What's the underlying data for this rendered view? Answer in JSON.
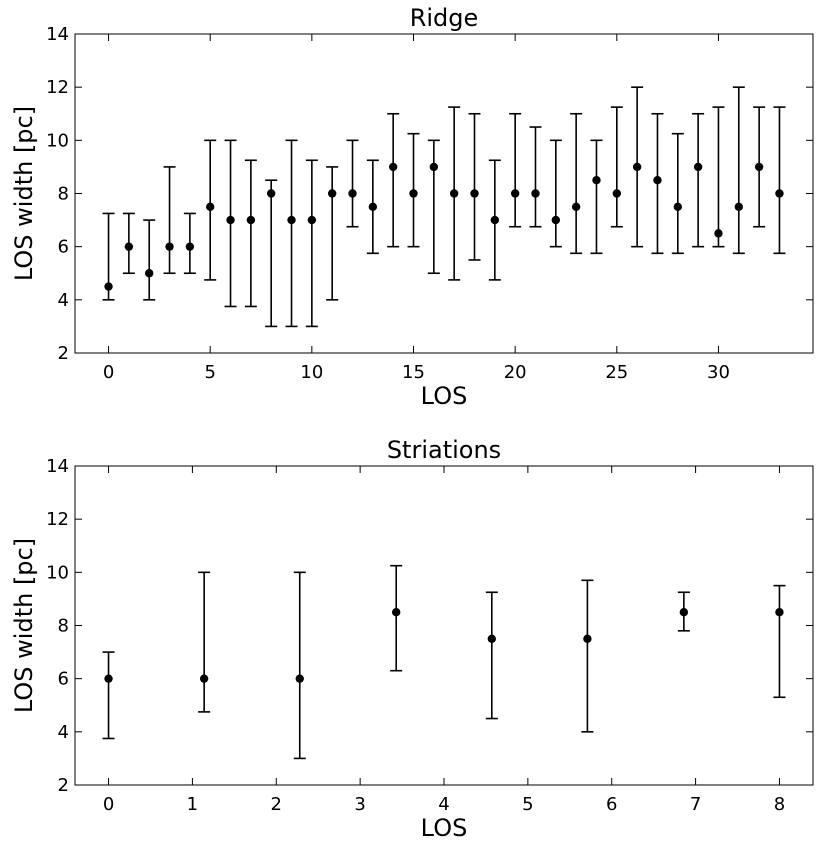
{
  "chart_data": [
    {
      "type": "scatter",
      "subtype": "errorbar",
      "title": "Ridge",
      "xlabel": "LOS",
      "ylabel": "LOS width [pc]",
      "xlim": [
        -1.65,
        34.65
      ],
      "ylim": [
        2,
        14
      ],
      "xticks": [
        0,
        5,
        10,
        15,
        20,
        25,
        30
      ],
      "yticks": [
        2,
        4,
        6,
        8,
        10,
        12,
        14
      ],
      "x": [
        0,
        1,
        2,
        3,
        4,
        5,
        6,
        7,
        8,
        9,
        10,
        11,
        12,
        13,
        14,
        15,
        16,
        17,
        18,
        19,
        20,
        21,
        22,
        23,
        24,
        25,
        26,
        27,
        28,
        29,
        30,
        31,
        32,
        33
      ],
      "y": [
        4.5,
        6,
        5,
        6,
        6,
        7.5,
        7,
        7,
        8,
        7,
        7,
        8,
        8,
        7.5,
        9,
        8,
        9,
        8,
        8,
        7,
        8,
        8,
        7,
        7.5,
        8.5,
        8,
        9,
        8.5,
        7.5,
        9,
        6.5,
        7.5,
        9,
        8
      ],
      "y_lower": [
        4,
        5,
        4,
        5,
        5,
        4.75,
        3.75,
        3.75,
        3,
        3,
        3,
        4,
        6.75,
        5.75,
        6,
        6,
        5,
        4.75,
        5.5,
        4.75,
        6.75,
        6.75,
        6,
        5.75,
        5.75,
        6.75,
        6,
        5.75,
        5.75,
        6,
        6,
        5.75,
        6.75,
        5.75
      ],
      "y_upper": [
        7.25,
        7.25,
        7,
        9,
        7.25,
        10,
        10,
        9.25,
        8.5,
        10,
        9.25,
        9,
        10,
        9.25,
        11,
        10.25,
        10,
        11.25,
        11,
        9.25,
        11,
        10.5,
        10,
        11,
        10,
        11.25,
        12,
        11,
        10.25,
        11,
        11.25,
        12,
        11.25,
        11.25
      ]
    },
    {
      "type": "scatter",
      "subtype": "errorbar",
      "title": "Striations",
      "xlabel": "LOS",
      "ylabel": "LOS width [pc]",
      "xlim": [
        -0.4,
        8.4
      ],
      "ylim": [
        2,
        14
      ],
      "xticks": [
        0,
        1,
        2,
        3,
        4,
        5,
        6,
        7,
        8
      ],
      "yticks": [
        2,
        4,
        6,
        8,
        10,
        12,
        14
      ],
      "x": [
        0,
        1.14,
        2.28,
        3.43,
        4.57,
        5.71,
        6.86,
        8
      ],
      "y": [
        6,
        6,
        6,
        8.5,
        7.5,
        7.5,
        8.5,
        8.5
      ],
      "y_lower": [
        3.75,
        4.75,
        3,
        6.3,
        4.5,
        4,
        7.8,
        5.3
      ],
      "y_upper": [
        7,
        10,
        10,
        10.25,
        9.25,
        9.7,
        9.25,
        9.5
      ]
    }
  ]
}
